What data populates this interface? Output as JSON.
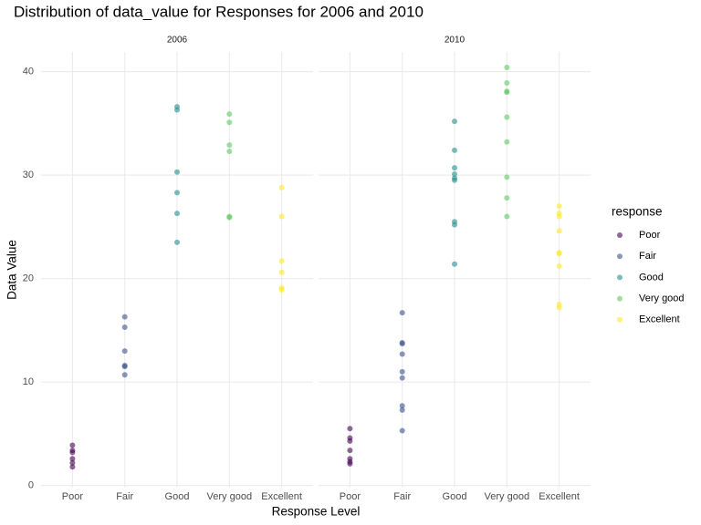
{
  "chart_data": {
    "type": "scatter",
    "title": "Distribution of data_value for Responses for 2006 and 2010",
    "x_label": "Response Level",
    "y_label": "Data Value",
    "legend_title": "response",
    "categories": [
      "Poor",
      "Fair",
      "Good",
      "Very good",
      "Excellent"
    ],
    "series": [
      {
        "name": "Poor",
        "color": "#440154"
      },
      {
        "name": "Fair",
        "color": "#3b528b"
      },
      {
        "name": "Good",
        "color": "#21908c"
      },
      {
        "name": "Very good",
        "color": "#5dc863"
      },
      {
        "name": "Excellent",
        "color": "#fde725"
      }
    ],
    "ylim": [
      -0.2,
      41.9
    ],
    "yticks": [
      0,
      10,
      20,
      30,
      40
    ],
    "grid": true,
    "facets": [
      {
        "title": "2006",
        "values": [
          [
            3.9,
            3.4,
            3.2,
            2.6,
            2.2,
            1.8
          ],
          [
            16.3,
            15.3,
            13.0,
            11.6,
            11.5,
            10.7
          ],
          [
            36.6,
            36.3,
            30.3,
            28.3,
            26.3,
            23.5
          ],
          [
            35.9,
            35.1,
            32.9,
            32.3,
            26.0,
            25.9
          ],
          [
            28.8,
            26.0,
            21.7,
            20.6,
            19.1,
            18.9
          ]
        ]
      },
      {
        "title": "2010",
        "values": [
          [
            5.5,
            4.6,
            4.3,
            3.4,
            2.6,
            2.3,
            2.1
          ],
          [
            16.7,
            13.8,
            13.7,
            12.7,
            11.0,
            10.4,
            7.7,
            7.3,
            5.3
          ],
          [
            35.2,
            32.4,
            30.7,
            30.1,
            29.7,
            29.5,
            25.5,
            25.2,
            21.4
          ],
          [
            40.4,
            38.9,
            38.1,
            38.0,
            35.6,
            33.2,
            29.8,
            27.8,
            26.0
          ],
          [
            27.0,
            26.3,
            26.0,
            24.6,
            22.5,
            22.4,
            21.2,
            17.5,
            17.2
          ]
        ]
      }
    ]
  }
}
